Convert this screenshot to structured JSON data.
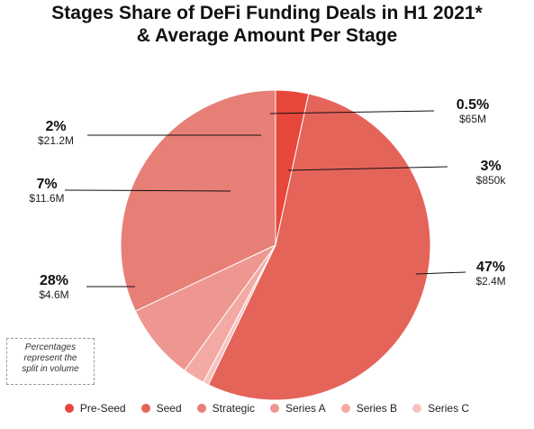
{
  "title_lines": [
    "Stages Share of DeFi Funding Deals in H1 2021*",
    "& Average Amount Per Stage"
  ],
  "note_lines": [
    "Percentages",
    "represent the",
    "split in volume"
  ],
  "chart_data": {
    "type": "pie",
    "title": "Stages Share of DeFi Funding Deals in H1 2021* & Average Amount Per Stage",
    "slices": [
      {
        "name": "Pre-Seed",
        "value": 3,
        "pct_label": "3%",
        "amount": "$850k",
        "color": "#e8473b"
      },
      {
        "name": "Seed",
        "value": 47,
        "pct_label": "47%",
        "amount": "$2.4M",
        "color": "#e5645a"
      },
      {
        "name": "Strategic",
        "value": 28,
        "pct_label": "28%",
        "amount": "$4.6M",
        "color": "#e77f76"
      },
      {
        "name": "Series A",
        "value": 7,
        "pct_label": "7%",
        "amount": "$11.6M",
        "color": "#ee9790"
      },
      {
        "name": "Series B",
        "value": 2,
        "pct_label": "2%",
        "amount": "$21.2M",
        "color": "#f3aaa4"
      },
      {
        "name": "Series C",
        "value": 0.5,
        "pct_label": "0.5%",
        "amount": "$65M",
        "color": "#f5c3bf"
      }
    ],
    "legend_position": "bottom"
  }
}
